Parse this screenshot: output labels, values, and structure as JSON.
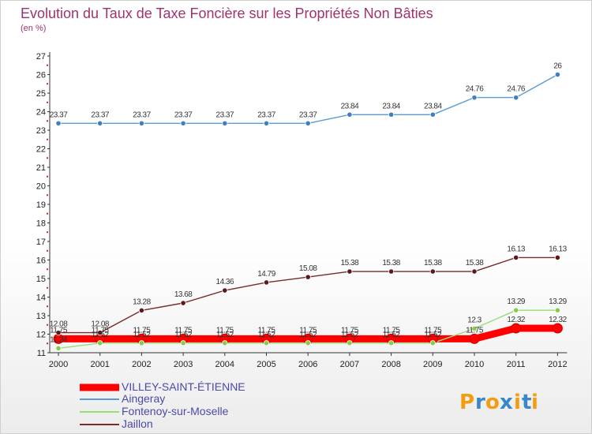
{
  "chart_data": {
    "type": "line",
    "title": "Evolution du Taux de Taxe Foncière sur les Propriétés Non Bâties",
    "subtitle": "(en %)",
    "categories": [
      "2000",
      "2001",
      "2002",
      "2003",
      "2004",
      "2005",
      "2006",
      "2007",
      "2008",
      "2009",
      "2010",
      "2011",
      "2012"
    ],
    "ylim": [
      11,
      27
    ],
    "yticks": [
      "11",
      "12",
      "13",
      "14",
      "15",
      "16",
      "17",
      "18",
      "19",
      "20",
      "21",
      "22",
      "23",
      "24",
      "25",
      "26",
      "27"
    ],
    "grid": false,
    "legend_position": "bottom-left",
    "series": [
      {
        "name": "VILLEY-SAINT-ÉTIENNE",
        "color": "#ff0000",
        "values": [
          11.75,
          11.75,
          11.75,
          11.75,
          11.75,
          11.75,
          11.75,
          11.75,
          11.75,
          11.75,
          11.75,
          12.32,
          12.32
        ],
        "labels": [
          "11.75",
          "11.75",
          "11.75",
          "11.75",
          "11.75",
          "11.75",
          "11.75",
          "11.75",
          "11.75",
          "11.75",
          "11.75",
          "12.32",
          "12.32"
        ]
      },
      {
        "name": "Aingeray",
        "color": "#5b9bd5",
        "values": [
          23.37,
          23.37,
          23.37,
          23.37,
          23.37,
          23.37,
          23.37,
          23.84,
          23.84,
          23.84,
          24.76,
          24.76,
          26
        ],
        "labels": [
          "23.37",
          "23.37",
          "23.37",
          "23.37",
          "23.37",
          "23.37",
          "23.37",
          "23.84",
          "23.84",
          "23.84",
          "24.76",
          "24.76",
          "26"
        ]
      },
      {
        "name": "Fontenoy-sur-Moselle",
        "color": "#99dd77",
        "values": [
          11.24,
          11.52,
          11.52,
          11.52,
          11.52,
          11.52,
          11.52,
          11.52,
          11.52,
          11.52,
          12.3,
          13.29,
          13.29
        ],
        "labels": [
          "11.24",
          "11.52",
          "11.52",
          "11.52",
          "11.52",
          "11.52",
          "11.52",
          "11.52",
          "11.52",
          "11.52",
          "12.3",
          "13.29",
          "13.29"
        ]
      },
      {
        "name": "Jaillon",
        "color": "#7a2a2a",
        "values": [
          12.08,
          12.08,
          13.28,
          13.68,
          14.36,
          14.79,
          15.08,
          15.38,
          15.38,
          15.38,
          15.38,
          16.13,
          16.13
        ],
        "labels": [
          "12.08",
          "12.08",
          "13.28",
          "13.68",
          "14.36",
          "14.79",
          "15.08",
          "15.38",
          "15.38",
          "15.38",
          "15.38",
          "16.13",
          "16.13"
        ]
      }
    ]
  },
  "logo": {
    "letters": [
      "P",
      "r",
      "o",
      "x",
      "i",
      "t",
      "i"
    ]
  }
}
